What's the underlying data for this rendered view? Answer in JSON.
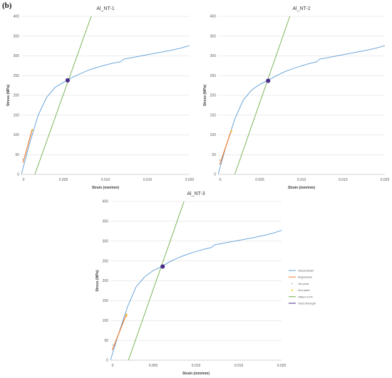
{
  "panel_label": "(b)",
  "legend": {
    "items": [
      {
        "label": "Stress/strain",
        "color": "#5B9BD5",
        "kind": "line"
      },
      {
        "label": "Regression",
        "color": "#ED7D31",
        "kind": "line"
      },
      {
        "label": "1st point",
        "color": "#C9C9C9",
        "kind": "marker"
      },
      {
        "label": "2nd point",
        "color": "#FFC000",
        "kind": "marker"
      },
      {
        "label": "Offset 0.2%",
        "color": "#70AD47",
        "kind": "line"
      },
      {
        "label": "Yield Strength",
        "color": "#4B2C8A",
        "kind": "line"
      }
    ]
  },
  "chart_data": [
    {
      "type": "line",
      "title": "Al_NT-1",
      "xlabel": "Strain (mm/mm)",
      "ylabel": "Stress (MPa)",
      "xlim": [
        0,
        0.02
      ],
      "ylim": [
        0,
        400
      ],
      "xticks": [
        0,
        0.005,
        0.01,
        0.015,
        0.02
      ],
      "xtick_labels": [
        "0",
        "0.005",
        "0.010",
        "0.015",
        "0.020"
      ],
      "yticks": [
        0,
        50,
        100,
        150,
        200,
        250,
        300,
        350,
        400
      ],
      "grid": "horizontal",
      "series": [
        {
          "name": "Stress/strain",
          "color": "#5B9BD5",
          "x": [
            0,
            0.001,
            0.002,
            0.003,
            0.004,
            0.005,
            0.0055,
            0.006,
            0.007,
            0.008,
            0.009,
            0.01,
            0.011,
            0.0118,
            0.0122,
            0.013,
            0.014,
            0.015,
            0.016,
            0.017,
            0.018,
            0.019,
            0.02
          ],
          "y": [
            0,
            80,
            150,
            195,
            220,
            233,
            238,
            245,
            255,
            264,
            271,
            277,
            282,
            285,
            292,
            295,
            299,
            303,
            307,
            311,
            315,
            320,
            326
          ]
        },
        {
          "name": "Regression",
          "color": "#ED7D31",
          "x": [
            0.0002,
            0.0013
          ],
          "y": [
            30,
            115
          ]
        },
        {
          "name": "1st point",
          "color": "#C9C9C9",
          "x": [
            0.0002
          ],
          "y": [
            38
          ]
        },
        {
          "name": "2nd point",
          "color": "#FFC000",
          "x": [
            0.0013
          ],
          "y": [
            112
          ]
        },
        {
          "name": "Offset 0.2%",
          "color": "#70AD47",
          "x": [
            0.0016,
            0.0083
          ],
          "y": [
            0,
            400
          ]
        },
        {
          "name": "Yield Strength",
          "color": "#4B2C8A",
          "x": [
            0.0055
          ],
          "y": [
            238
          ]
        }
      ]
    },
    {
      "type": "line",
      "title": "Al_NT-2",
      "xlabel": "Strain (mm/mm)",
      "ylabel": "Stress (MPa)",
      "xlim": [
        0,
        0.02
      ],
      "ylim": [
        0,
        400
      ],
      "xticks": [
        0,
        0.005,
        0.01,
        0.015,
        0.02
      ],
      "xtick_labels": [
        "0",
        "0.005",
        "0.010",
        "0.015",
        "0.020"
      ],
      "yticks": [
        0,
        50,
        100,
        150,
        200,
        250,
        300,
        350,
        400
      ],
      "grid": "horizontal",
      "series": [
        {
          "name": "Stress/strain",
          "color": "#5B9BD5",
          "x": [
            0,
            0.001,
            0.002,
            0.003,
            0.004,
            0.005,
            0.006,
            0.007,
            0.008,
            0.009,
            0.01,
            0.011,
            0.0118,
            0.0122,
            0.013,
            0.014,
            0.015,
            0.016,
            0.017,
            0.018,
            0.019,
            0.02
          ],
          "y": [
            0,
            75,
            140,
            188,
            213,
            228,
            238,
            250,
            260,
            268,
            275,
            281,
            285,
            292,
            295,
            299,
            303,
            307,
            311,
            315,
            320,
            326
          ]
        },
        {
          "name": "Regression",
          "color": "#ED7D31",
          "x": [
            0.0002,
            0.0016
          ],
          "y": [
            25,
            112
          ]
        },
        {
          "name": "1st point",
          "color": "#C9C9C9",
          "x": [
            0.0002
          ],
          "y": [
            36
          ]
        },
        {
          "name": "2nd point",
          "color": "#FFC000",
          "x": [
            0.0016
          ],
          "y": [
            110
          ]
        },
        {
          "name": "Offset 0.2%",
          "color": "#70AD47",
          "x": [
            0.002,
            0.0086
          ],
          "y": [
            0,
            400
          ]
        },
        {
          "name": "Yield Strength",
          "color": "#4B2C8A",
          "x": [
            0.006
          ],
          "y": [
            237
          ]
        }
      ]
    },
    {
      "type": "line",
      "title": "Al_NT-3",
      "xlabel": "Strain (mm/mm)",
      "ylabel": "Stress (MPa)",
      "xlim": [
        0,
        0.02
      ],
      "ylim": [
        0,
        400
      ],
      "xticks": [
        0,
        0.005,
        0.01,
        0.015,
        0.02
      ],
      "xtick_labels": [
        "0",
        "0.005",
        "0.010",
        "0.015",
        "0.020"
      ],
      "yticks": [
        0,
        50,
        100,
        150,
        200,
        250,
        300,
        350,
        400
      ],
      "grid": "horizontal",
      "series": [
        {
          "name": "Stress/strain",
          "color": "#5B9BD5",
          "x": [
            0,
            0.001,
            0.002,
            0.003,
            0.004,
            0.005,
            0.006,
            0.007,
            0.008,
            0.009,
            0.01,
            0.011,
            0.0118,
            0.0122,
            0.013,
            0.014,
            0.015,
            0.016,
            0.017,
            0.018,
            0.019,
            0.02
          ],
          "y": [
            0,
            70,
            135,
            185,
            210,
            226,
            236,
            249,
            259,
            267,
            274,
            280,
            284,
            291,
            294,
            298,
            302,
            306,
            310,
            315,
            320,
            327
          ]
        },
        {
          "name": "Regression",
          "color": "#ED7D31",
          "x": [
            0.0002,
            0.0019
          ],
          "y": [
            25,
            118
          ]
        },
        {
          "name": "1st point",
          "color": "#C9C9C9",
          "x": [
            0.0003
          ],
          "y": [
            38
          ]
        },
        {
          "name": "2nd point",
          "color": "#FFC000",
          "x": [
            0.0019
          ],
          "y": [
            112
          ]
        },
        {
          "name": "Offset 0.2%",
          "color": "#70AD47",
          "x": [
            0.0021,
            0.0086
          ],
          "y": [
            0,
            400
          ]
        },
        {
          "name": "Yield Strength",
          "color": "#4B2C8A",
          "x": [
            0.0061
          ],
          "y": [
            236
          ]
        }
      ]
    }
  ]
}
